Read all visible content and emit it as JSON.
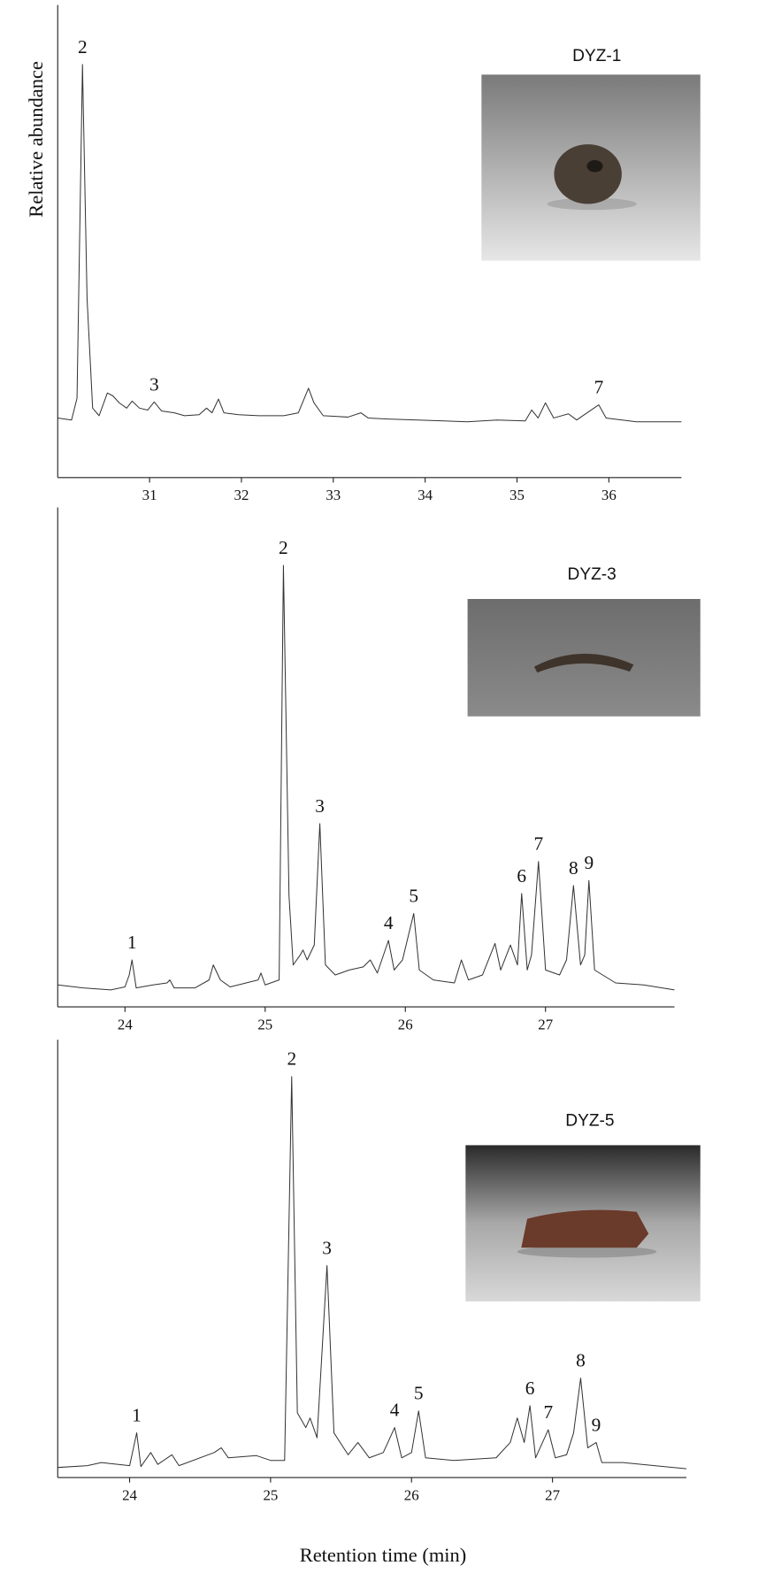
{
  "chart_data": [
    {
      "type": "line",
      "title": "DYZ-1",
      "y_label": "Relative abundance",
      "xlim": [
        30.0,
        36.79
      ],
      "xticks": [
        31,
        32,
        33,
        34,
        35,
        36
      ],
      "ylim": [
        0,
        100
      ],
      "series": [
        {
          "color": "#333333",
          "x": [
            30.0,
            30.15,
            30.21,
            30.27,
            30.32,
            30.38,
            30.45,
            30.54,
            30.6,
            30.67,
            30.75,
            30.81,
            30.89,
            30.98,
            31.05,
            31.13,
            31.27,
            31.38,
            31.54,
            31.62,
            31.68,
            31.75,
            31.81,
            31.97,
            32.19,
            32.46,
            32.62,
            32.73,
            32.79,
            32.89,
            33.16,
            33.3,
            33.38,
            33.59,
            33.92,
            34.46,
            34.78,
            35.09,
            35.16,
            35.23,
            35.31,
            35.4,
            35.56,
            35.65,
            35.89,
            35.97,
            36.3,
            36.79
          ],
          "values": [
            12.6,
            12.2,
            16.8,
            87.4,
            37.9,
            14.7,
            13.1,
            17.9,
            17.3,
            15.8,
            14.7,
            16.2,
            14.7,
            14.3,
            16.0,
            14.1,
            13.7,
            13.1,
            13.3,
            14.7,
            13.7,
            16.6,
            13.7,
            13.3,
            13.1,
            13.1,
            13.7,
            18.9,
            15.8,
            13.1,
            12.8,
            13.7,
            12.6,
            12.4,
            12.2,
            11.8,
            12.2,
            12.0,
            14.3,
            12.6,
            15.8,
            12.6,
            13.5,
            12.2,
            15.4,
            12.6,
            11.8,
            11.8
          ]
        }
      ],
      "annotations": [
        {
          "text": "2",
          "x": 30.27
        },
        {
          "text": "3",
          "x": 31.05
        },
        {
          "text": "7",
          "x": 35.89
        }
      ]
    },
    {
      "type": "line",
      "title": "DYZ-3",
      "xlim": [
        23.52,
        27.92
      ],
      "xticks": [
        24,
        25,
        26,
        27
      ],
      "ylim": [
        0,
        100
      ],
      "series": [
        {
          "color": "#333333",
          "x": [
            23.52,
            23.7,
            23.9,
            24.0,
            24.03,
            24.05,
            24.08,
            24.2,
            24.3,
            24.32,
            24.35,
            24.5,
            24.6,
            24.63,
            24.68,
            24.75,
            24.95,
            24.97,
            25.0,
            25.1,
            25.13,
            25.17,
            25.2,
            25.25,
            25.27,
            25.3,
            25.35,
            25.39,
            25.43,
            25.5,
            25.6,
            25.7,
            25.75,
            25.8,
            25.88,
            25.92,
            25.98,
            26.06,
            26.1,
            26.2,
            26.35,
            26.4,
            26.45,
            26.55,
            26.64,
            26.68,
            26.75,
            26.8,
            26.83,
            26.87,
            26.9,
            26.95,
            27.0,
            27.1,
            27.15,
            27.2,
            27.25,
            27.28,
            27.31,
            27.35,
            27.5,
            27.7,
            27.92
          ],
          "values": [
            4.4,
            3.8,
            3.4,
            4.0,
            6.4,
            9.4,
            3.8,
            4.4,
            4.8,
            5.4,
            3.8,
            3.8,
            5.4,
            8.4,
            5.4,
            4.0,
            5.4,
            6.8,
            4.4,
            5.4,
            88.4,
            22.3,
            8.4,
            10.4,
            11.4,
            9.4,
            12.4,
            36.7,
            8.4,
            6.4,
            7.4,
            8.0,
            9.4,
            6.8,
            13.3,
            7.4,
            9.4,
            18.7,
            7.4,
            5.4,
            4.8,
            9.4,
            5.4,
            6.4,
            12.7,
            7.4,
            12.4,
            8.4,
            22.7,
            7.4,
            10.4,
            29.1,
            7.4,
            6.4,
            9.4,
            24.3,
            8.4,
            10.4,
            25.3,
            7.4,
            4.8,
            4.4,
            3.4
          ]
        }
      ],
      "annotations": [
        {
          "text": "1",
          "x": 24.05
        },
        {
          "text": "2",
          "x": 25.13
        },
        {
          "text": "3",
          "x": 25.39
        },
        {
          "text": "4",
          "x": 25.88
        },
        {
          "text": "5",
          "x": 26.06
        },
        {
          "text": "6",
          "x": 26.83
        },
        {
          "text": "7",
          "x": 26.95
        },
        {
          "text": "8",
          "x": 27.2
        },
        {
          "text": "9",
          "x": 27.31
        }
      ]
    },
    {
      "type": "line",
      "title": "DYZ-5",
      "x_label": "Retention time (min)",
      "xlim": [
        23.49,
        27.95
      ],
      "xticks": [
        24,
        25,
        26,
        27
      ],
      "ylim": [
        0,
        100
      ],
      "series": [
        {
          "color": "#333333",
          "x": [
            23.49,
            23.7,
            23.8,
            24.0,
            24.05,
            24.08,
            24.15,
            24.2,
            24.3,
            24.35,
            24.6,
            24.65,
            24.7,
            24.9,
            25.0,
            25.1,
            25.15,
            25.19,
            25.25,
            25.28,
            25.33,
            25.4,
            25.45,
            25.55,
            25.62,
            25.7,
            25.8,
            25.88,
            25.93,
            26.0,
            26.05,
            26.1,
            26.3,
            26.6,
            26.7,
            26.75,
            26.8,
            26.84,
            26.88,
            26.97,
            27.02,
            27.1,
            27.15,
            27.2,
            27.25,
            27.31,
            27.35,
            27.5,
            27.95
          ],
          "values": [
            2.3,
            2.7,
            3.4,
            2.7,
            10.2,
            2.5,
            5.7,
            3.0,
            5.2,
            2.7,
            5.7,
            6.8,
            4.5,
            5.0,
            3.9,
            3.9,
            91.6,
            14.8,
            11.4,
            13.6,
            9.1,
            48.4,
            10.2,
            5.2,
            8.0,
            4.5,
            5.7,
            11.4,
            4.5,
            5.7,
            15.2,
            4.5,
            3.9,
            4.5,
            8.0,
            13.6,
            8.0,
            16.4,
            4.5,
            10.9,
            4.5,
            5.2,
            10.2,
            22.7,
            6.8,
            8.0,
            3.4,
            3.4,
            2.0
          ]
        }
      ],
      "annotations": [
        {
          "text": "1",
          "x": 24.05
        },
        {
          "text": "2",
          "x": 25.15
        },
        {
          "text": "3",
          "x": 25.4
        },
        {
          "text": "4",
          "x": 25.88
        },
        {
          "text": "5",
          "x": 26.05
        },
        {
          "text": "6",
          "x": 26.84
        },
        {
          "text": "7",
          "x": 26.97
        },
        {
          "text": "8",
          "x": 27.2
        },
        {
          "text": "9",
          "x": 27.31
        }
      ]
    }
  ]
}
